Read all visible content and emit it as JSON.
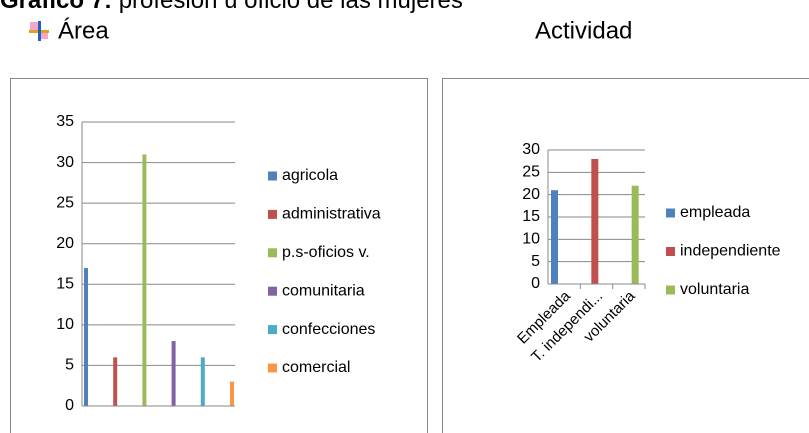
{
  "title": {
    "label": "Gráfico 7:",
    "text": " profesión u oficio de las mujeres"
  },
  "headings": [
    "Área",
    "Actividad"
  ],
  "chart_data": [
    {
      "type": "bar",
      "categories": [
        null
      ],
      "series": [
        {
          "name": "agricola",
          "color": "#4f81bd",
          "values": [
            17
          ]
        },
        {
          "name": "administrativa",
          "color": "#c0504d",
          "values": [
            6
          ]
        },
        {
          "name": "p.s-oficios v.",
          "color": "#9bbb59",
          "values": [
            31
          ]
        },
        {
          "name": "comunitaria",
          "color": "#8064a2",
          "values": [
            8
          ]
        },
        {
          "name": "confecciones",
          "color": "#4bacc6",
          "values": [
            6
          ]
        },
        {
          "name": "comercial",
          "color": "#f79646",
          "values": [
            3
          ]
        }
      ],
      "ylim": [
        0,
        35
      ],
      "yticks": [
        0,
        5,
        10,
        15,
        20,
        25,
        30,
        35
      ],
      "grid": true,
      "legend": "right"
    },
    {
      "type": "bar",
      "categories": [
        "Empleada",
        "T. independi...",
        "voluntaria"
      ],
      "series": [
        {
          "name": "empleada",
          "color": "#4f81bd",
          "values": [
            21,
            null,
            null
          ]
        },
        {
          "name": "independiente",
          "color": "#c0504d",
          "values": [
            null,
            28,
            null
          ]
        },
        {
          "name": "voluntaria",
          "color": "#9bbb59",
          "values": [
            null,
            null,
            22
          ]
        }
      ],
      "ylim": [
        0,
        30
      ],
      "yticks": [
        0,
        5,
        10,
        15,
        20,
        25,
        30
      ],
      "grid": true,
      "legend": "right"
    }
  ]
}
